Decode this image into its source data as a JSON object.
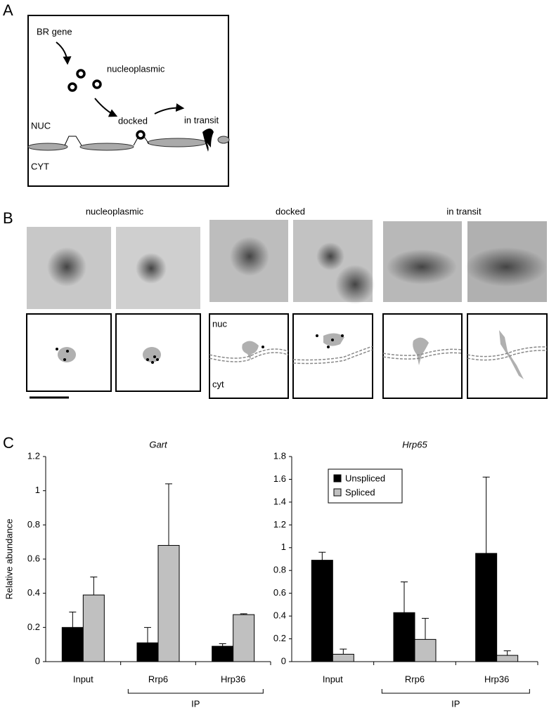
{
  "panel_labels": [
    "A",
    "B",
    "C"
  ],
  "panel_a": {
    "labels": [
      "BR gene",
      "nucleoplasmic",
      "docked",
      "in transit",
      "NUC",
      "CYT"
    ]
  },
  "panel_b": {
    "titles": [
      "nucleoplasmic",
      "docked",
      "in transit"
    ],
    "sketch_labels": [
      "nuc",
      "cyt"
    ]
  },
  "chart_data": [
    {
      "type": "bar",
      "title": "Gart",
      "y_label": "Relative abundance",
      "categories": [
        "Input",
        "Rrp6",
        "Hrp36"
      ],
      "group_label": "IP",
      "series": [
        {
          "color": "#000000",
          "values": [
            0.2,
            0.11,
            0.09
          ],
          "errors": [
            0.09,
            0.09,
            0.015
          ]
        },
        {
          "color": "#c0c0c0",
          "values": [
            0.39,
            0.68,
            0.275
          ],
          "errors": [
            0.105,
            0.36,
            0.005
          ]
        }
      ],
      "ylim": [
        0,
        1.2
      ],
      "yticks": [
        0,
        0.2,
        0.4,
        0.6,
        0.8,
        1,
        1.2
      ]
    },
    {
      "type": "bar",
      "title": "Hrp65",
      "categories": [
        "Input",
        "Rrp6",
        "Hrp36"
      ],
      "group_label": "IP",
      "series": [
        {
          "name": "Unspliced",
          "color": "#000000",
          "values": [
            0.89,
            0.43,
            0.95
          ],
          "errors": [
            0.07,
            0.27,
            0.67
          ]
        },
        {
          "name": "Spliced",
          "color": "#c0c0c0",
          "values": [
            0.065,
            0.195,
            0.055
          ],
          "errors": [
            0.045,
            0.185,
            0.04
          ]
        }
      ],
      "ylim": [
        0,
        1.8
      ],
      "yticks": [
        0,
        0.2,
        0.4,
        0.6,
        0.8,
        1,
        1.2,
        1.4,
        1.6,
        1.8
      ],
      "legend": "upper left"
    }
  ]
}
